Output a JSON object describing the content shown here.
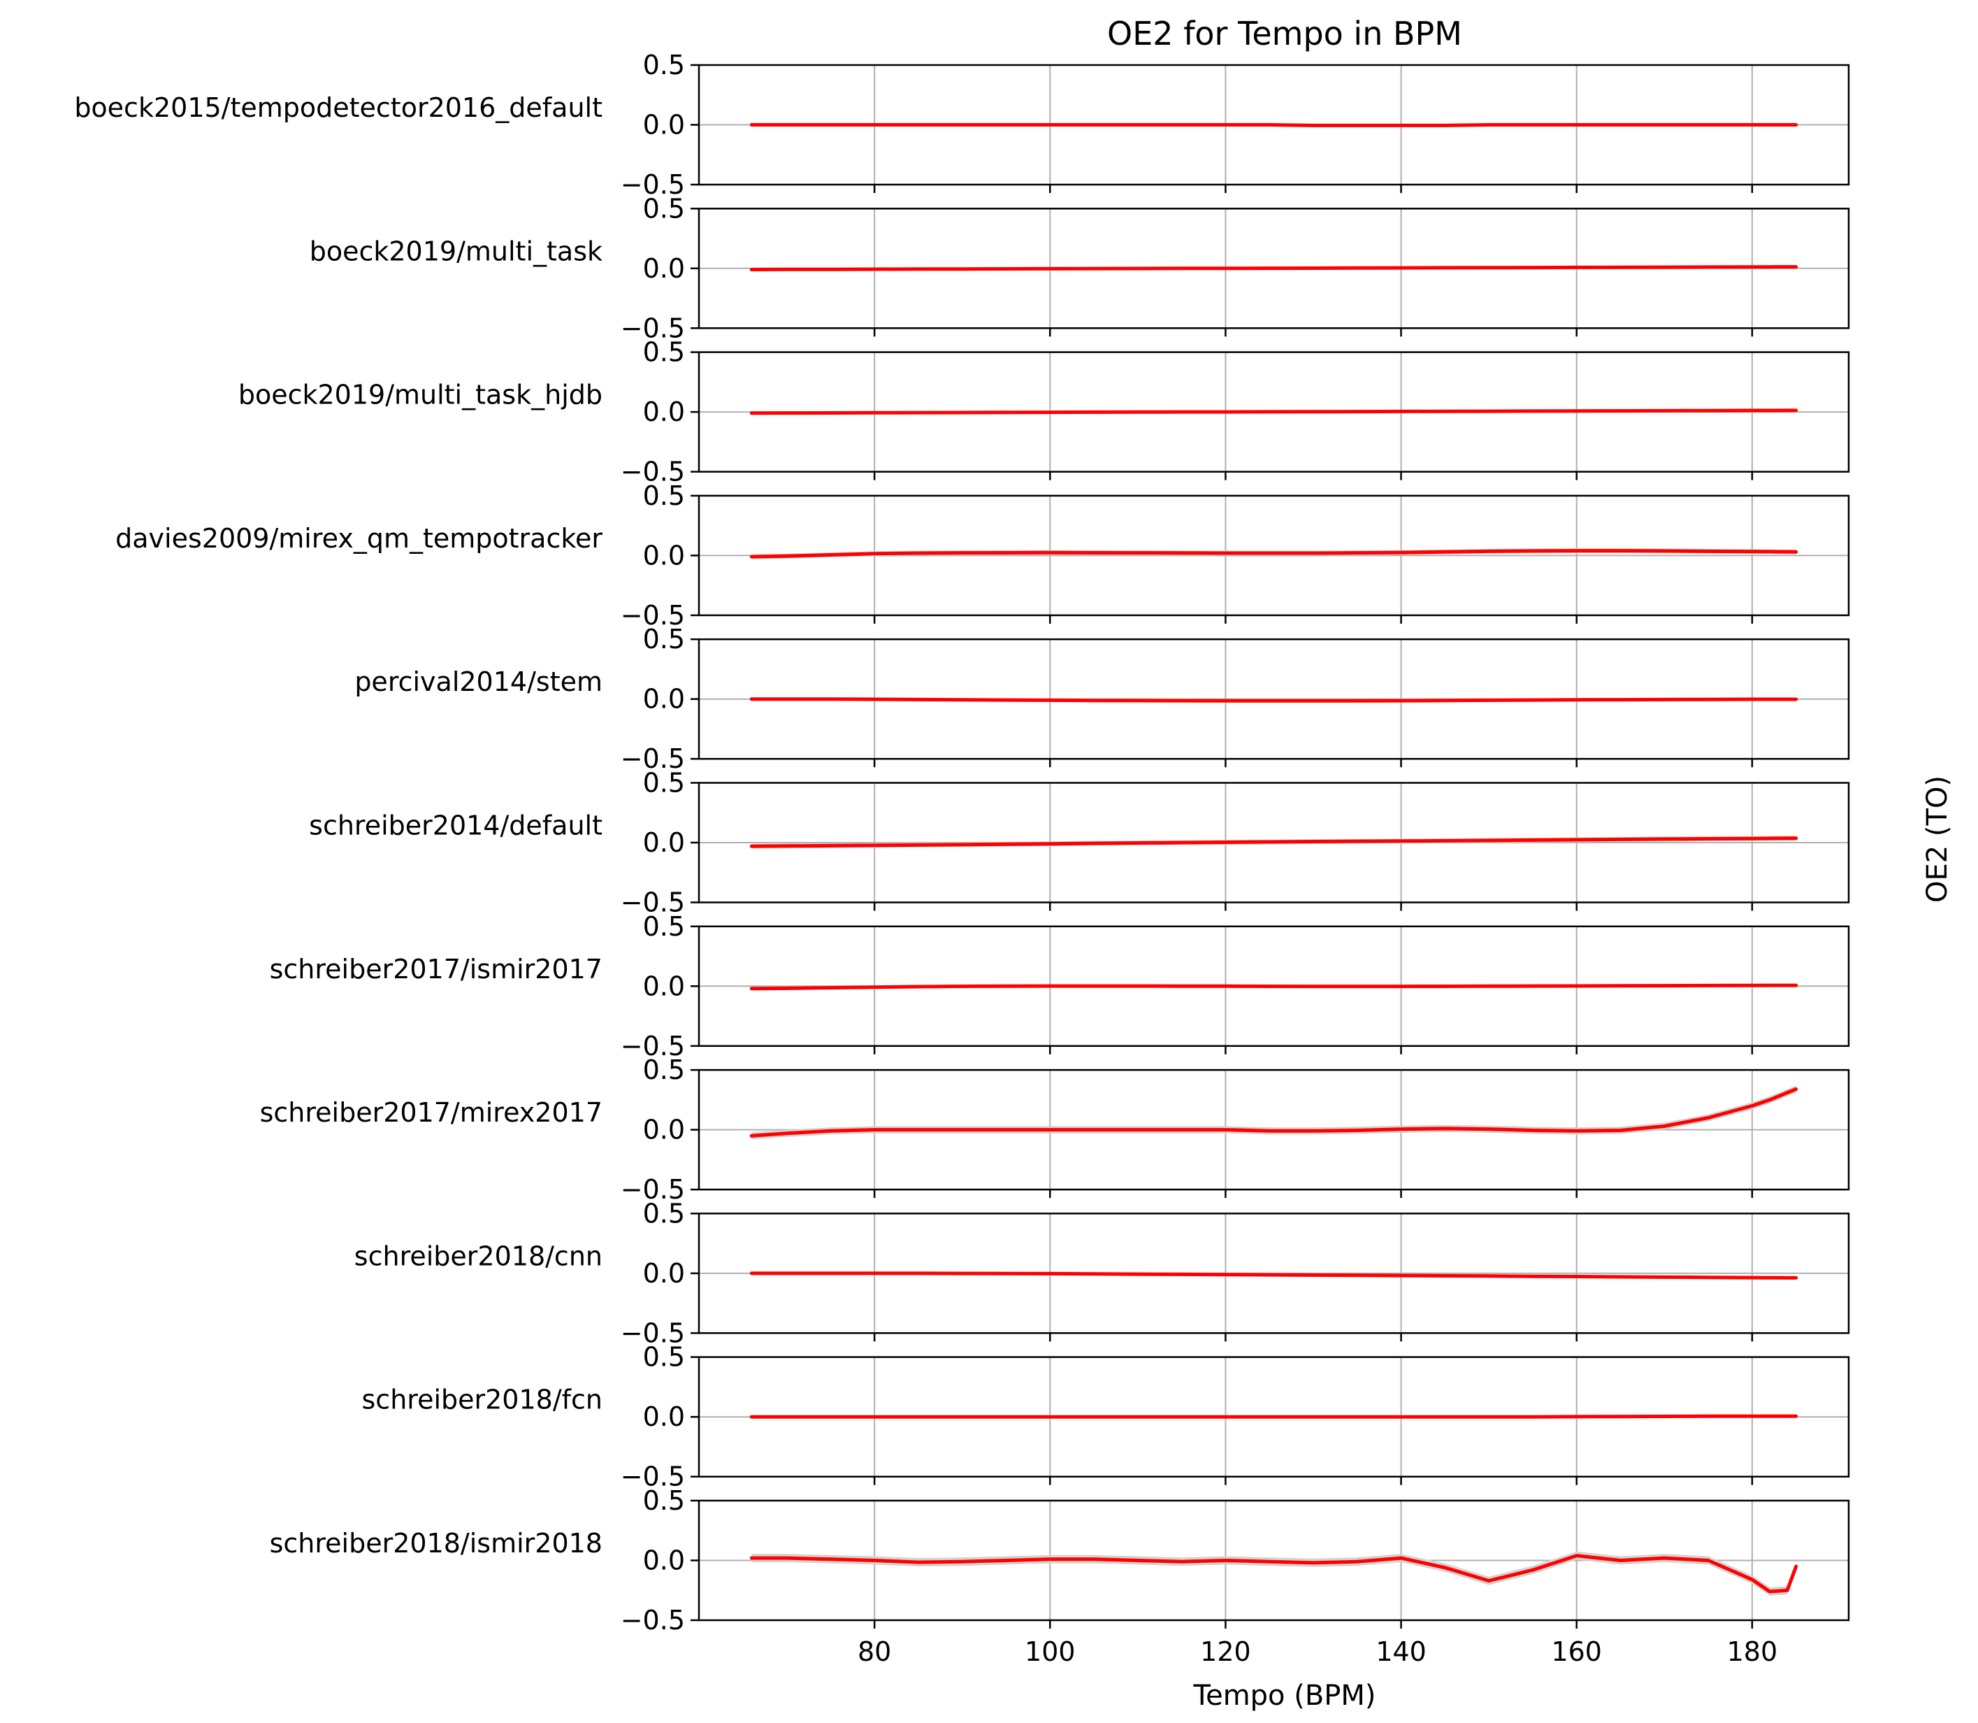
{
  "chart_data": {
    "type": "line",
    "title": "OE2 for Tempo in BPM",
    "xlabel": "Tempo (BPM)",
    "ylabel": "OE2 (TO)",
    "xlim": [
      60,
      191
    ],
    "ylim": [
      -0.5,
      0.5
    ],
    "x_ticks": [
      80,
      100,
      120,
      140,
      160,
      180
    ],
    "y_ticks": [
      -0.5,
      0.0,
      0.5
    ],
    "y_tick_labels": [
      "−0.5",
      "0.0",
      "0.5"
    ],
    "grid": true,
    "line_color": "#ff0000",
    "band_color": "#d3d3d3",
    "x": [
      66,
      70,
      75,
      80,
      85,
      90,
      95,
      100,
      105,
      110,
      115,
      120,
      125,
      130,
      135,
      140,
      145,
      150,
      155,
      160,
      165,
      170,
      175,
      180,
      182,
      184,
      185
    ],
    "series": [
      {
        "name": "boeck2015/tempodetector2016_default",
        "values": [
          0.0,
          0.0,
          0.0,
          0.0,
          0.0,
          0.0,
          0.0,
          0.0,
          0.0,
          0.0,
          0.0,
          0.0,
          0.0,
          -0.005,
          -0.005,
          -0.005,
          -0.005,
          0.0,
          0.0,
          0.0,
          0.0,
          0.0,
          0.0,
          0.0,
          0.0,
          0.0,
          0.0
        ],
        "band": 0.01
      },
      {
        "name": "boeck2019/multi_task",
        "values": [
          -0.01,
          -0.009,
          -0.008,
          -0.007,
          -0.006,
          -0.005,
          -0.004,
          -0.003,
          -0.002,
          -0.001,
          0.0,
          0.0,
          0.001,
          0.002,
          0.003,
          0.004,
          0.005,
          0.006,
          0.007,
          0.008,
          0.009,
          0.01,
          0.011,
          0.012,
          0.012,
          0.013,
          0.013
        ],
        "band": 0.01
      },
      {
        "name": "boeck2019/multi_task_hjdb",
        "values": [
          -0.01,
          -0.009,
          -0.008,
          -0.007,
          -0.006,
          -0.005,
          -0.004,
          -0.003,
          -0.002,
          -0.001,
          0.0,
          0.0,
          0.001,
          0.002,
          0.003,
          0.004,
          0.005,
          0.006,
          0.007,
          0.008,
          0.009,
          0.01,
          0.011,
          0.012,
          0.012,
          0.013,
          0.013
        ],
        "band": 0.01
      },
      {
        "name": "davies2009/mirex_qm_tempotracker",
        "values": [
          -0.01,
          -0.005,
          0.005,
          0.015,
          0.02,
          0.022,
          0.023,
          0.024,
          0.023,
          0.022,
          0.021,
          0.02,
          0.02,
          0.02,
          0.022,
          0.025,
          0.03,
          0.035,
          0.038,
          0.04,
          0.04,
          0.038,
          0.035,
          0.033,
          0.032,
          0.031,
          0.03
        ],
        "band": 0.02
      },
      {
        "name": "percival2014/stem",
        "values": [
          0.0,
          0.0,
          0.0,
          -0.002,
          -0.004,
          -0.006,
          -0.008,
          -0.01,
          -0.012,
          -0.013,
          -0.014,
          -0.015,
          -0.015,
          -0.015,
          -0.015,
          -0.014,
          -0.012,
          -0.01,
          -0.008,
          -0.006,
          -0.005,
          -0.004,
          -0.003,
          -0.002,
          -0.002,
          -0.002,
          -0.002
        ],
        "band": 0.01
      },
      {
        "name": "schreiber2014/default",
        "values": [
          -0.03,
          -0.028,
          -0.026,
          -0.023,
          -0.02,
          -0.017,
          -0.013,
          -0.01,
          -0.006,
          -0.003,
          0.0,
          0.003,
          0.006,
          0.009,
          0.011,
          0.013,
          0.015,
          0.018,
          0.021,
          0.024,
          0.027,
          0.03,
          0.032,
          0.034,
          0.035,
          0.036,
          0.036
        ],
        "band": 0.02
      },
      {
        "name": "schreiber2017/ismir2017",
        "values": [
          -0.02,
          -0.018,
          -0.013,
          -0.008,
          -0.004,
          -0.001,
          0.0,
          0.001,
          0.001,
          0.001,
          0.0,
          0.0,
          -0.001,
          -0.002,
          -0.002,
          -0.002,
          -0.001,
          0.0,
          0.001,
          0.002,
          0.003,
          0.004,
          0.005,
          0.006,
          0.007,
          0.007,
          0.007
        ],
        "band": 0.01
      },
      {
        "name": "schreiber2017/mirex2017",
        "values": [
          -0.05,
          -0.03,
          -0.01,
          0.0,
          0.0,
          0.0,
          0.0,
          0.0,
          0.0,
          0.0,
          0.0,
          0.0,
          -0.01,
          -0.01,
          -0.005,
          0.005,
          0.01,
          0.005,
          -0.005,
          -0.01,
          -0.005,
          0.03,
          0.1,
          0.2,
          0.25,
          0.31,
          0.34
        ],
        "band": 0.03
      },
      {
        "name": "schreiber2018/cnn",
        "values": [
          0.0,
          0.0,
          0.0,
          0.0,
          0.0,
          -0.001,
          -0.002,
          -0.003,
          -0.005,
          -0.007,
          -0.009,
          -0.011,
          -0.013,
          -0.015,
          -0.017,
          -0.019,
          -0.021,
          -0.023,
          -0.025,
          -0.027,
          -0.03,
          -0.032,
          -0.034,
          -0.036,
          -0.037,
          -0.038,
          -0.038
        ],
        "band": 0.01
      },
      {
        "name": "schreiber2018/fcn",
        "values": [
          0.0,
          0.0,
          0.0,
          0.0,
          0.0,
          0.0,
          0.0,
          0.0,
          0.0,
          0.0,
          0.0,
          0.0,
          0.0,
          0.0,
          0.0,
          0.0,
          0.0,
          0.0,
          0.0,
          0.002,
          0.003,
          0.004,
          0.005,
          0.006,
          0.006,
          0.006,
          0.006
        ],
        "band": 0.01
      },
      {
        "name": "schreiber2018/ismir2018",
        "values": [
          0.02,
          0.02,
          0.01,
          0.0,
          -0.015,
          -0.01,
          0.0,
          0.01,
          0.01,
          0.0,
          -0.01,
          0.0,
          -0.01,
          -0.02,
          -0.01,
          0.02,
          -0.06,
          -0.17,
          -0.08,
          0.04,
          0.0,
          0.02,
          0.0,
          -0.16,
          -0.26,
          -0.25,
          -0.05
        ],
        "band": 0.035
      }
    ]
  }
}
